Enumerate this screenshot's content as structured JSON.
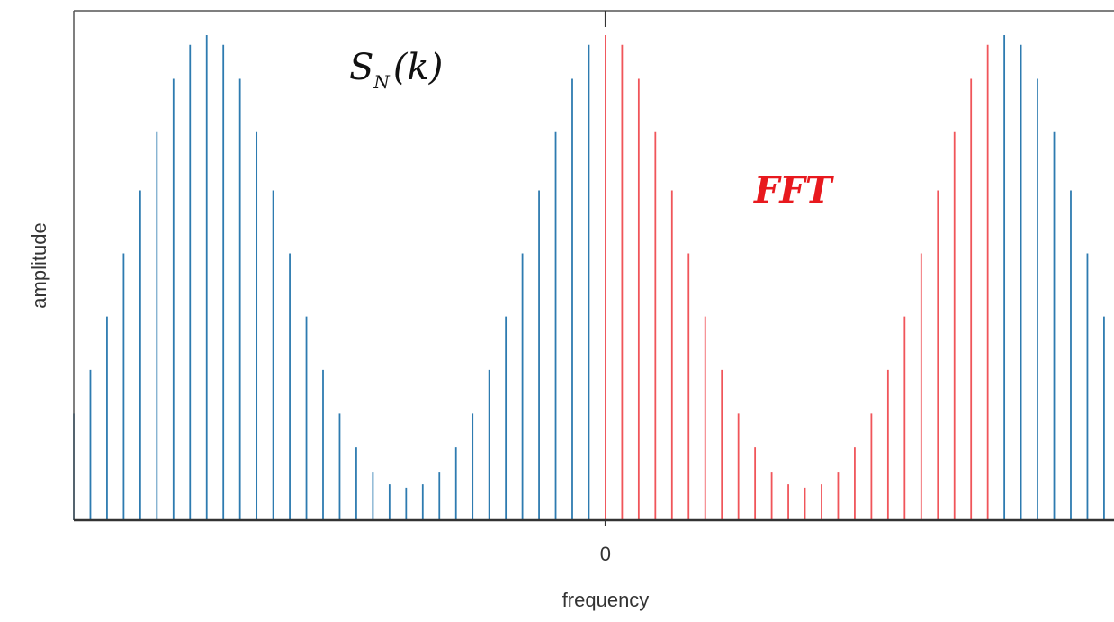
{
  "chart_data": {
    "type": "stem",
    "xlabel": "frequency",
    "ylabel": "amplitude",
    "xlim": [
      -32,
      30.6
    ],
    "ylim": [
      0,
      1.05
    ],
    "xticks": [
      0
    ],
    "annotations": [
      {
        "symbol": "S",
        "subscript": "N",
        "argument": "(k)"
      },
      {
        "text": "FFT",
        "color": "#e8191e"
      }
    ],
    "series": [
      {
        "color": "#2e7bb0",
        "x": [
          -32,
          -31,
          -30,
          -29,
          -28,
          -27,
          -26,
          -25,
          -24,
          -23,
          -22,
          -21,
          -20,
          -19,
          -18,
          -17,
          -16,
          -15,
          -14,
          -13,
          -12,
          -11,
          -10,
          -9,
          -8,
          -7,
          -6,
          -5,
          -4,
          -3,
          -2,
          -1,
          24,
          25,
          26,
          27,
          28,
          29,
          30
        ],
        "values": [
          0.22,
          0.31,
          0.42,
          0.55,
          0.68,
          0.8,
          0.91,
          0.98,
          1.0,
          0.98,
          0.91,
          0.8,
          0.68,
          0.55,
          0.42,
          0.31,
          0.22,
          0.15,
          0.1,
          0.074,
          0.067,
          0.074,
          0.1,
          0.15,
          0.22,
          0.31,
          0.42,
          0.55,
          0.68,
          0.8,
          0.91,
          0.98,
          1.0,
          0.98,
          0.91,
          0.8,
          0.68,
          0.55,
          0.42
        ]
      },
      {
        "color": "#f0555a",
        "x": [
          0,
          1,
          2,
          3,
          4,
          5,
          6,
          7,
          8,
          9,
          10,
          11,
          12,
          13,
          14,
          15,
          16,
          17,
          18,
          19,
          20,
          21,
          22,
          23
        ],
        "values": [
          1.0,
          0.98,
          0.91,
          0.8,
          0.68,
          0.55,
          0.42,
          0.31,
          0.22,
          0.15,
          0.1,
          0.074,
          0.067,
          0.074,
          0.1,
          0.15,
          0.22,
          0.31,
          0.42,
          0.55,
          0.68,
          0.8,
          0.91,
          0.98
        ]
      }
    ]
  }
}
